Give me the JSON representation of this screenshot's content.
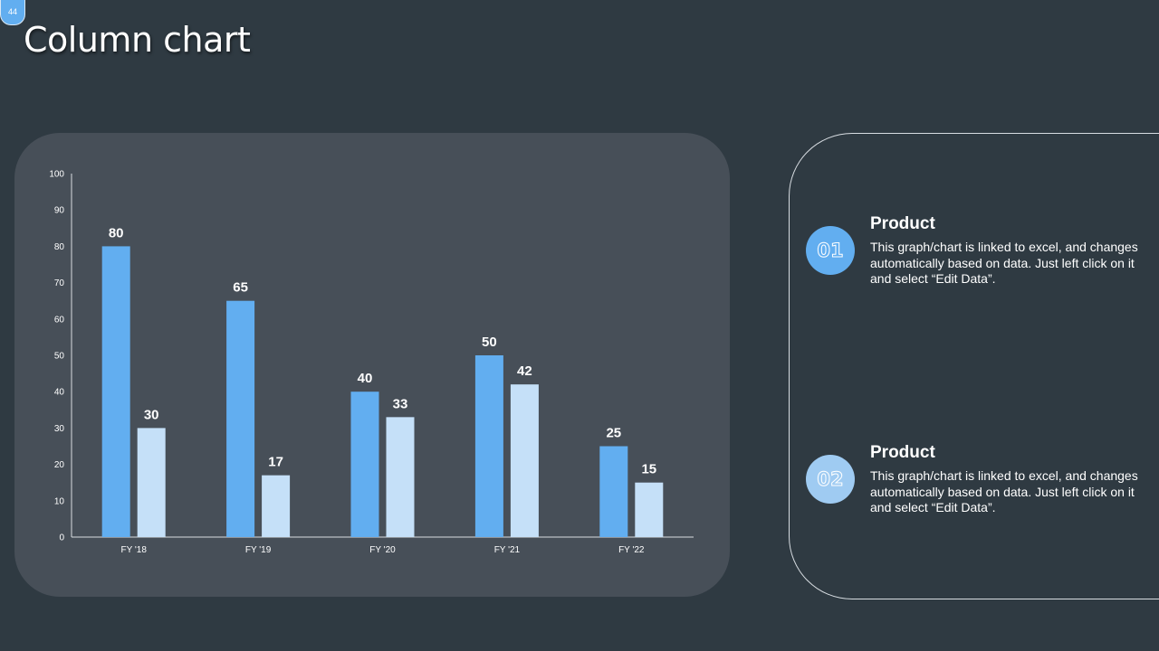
{
  "page": {
    "number": "44",
    "title": "Column chart"
  },
  "colors": {
    "background": "#2f3a42",
    "panel": "#474f58",
    "series_1": "#62aef0",
    "series_2": "#c5e0f8",
    "circle_1": "#62aef0",
    "circle_2": "#9fcbf2"
  },
  "legend_items": [
    {
      "number": "01",
      "heading": "Product",
      "text": "This graph/chart is linked to excel, and changes automatically based on data. Just left click on it and select “Edit Data”."
    },
    {
      "number": "02",
      "heading": "Product",
      "text": "This graph/chart is linked to excel, and changes automatically based on data. Just left click on it and select “Edit Data”."
    }
  ],
  "chart_data": {
    "type": "bar",
    "title": "",
    "xlabel": "",
    "ylabel": "",
    "categories": [
      "FY '18",
      "FY '19",
      "FY '20",
      "FY '21",
      "FY '22"
    ],
    "series": [
      {
        "values": [
          80,
          65,
          40,
          50,
          25
        ]
      },
      {
        "values": [
          30,
          17,
          33,
          42,
          15
        ]
      }
    ],
    "ylim": [
      0,
      100
    ],
    "yticks": [
      0,
      10,
      20,
      30,
      40,
      50,
      60,
      70,
      80,
      90,
      100
    ],
    "grid": false,
    "data_labels": true
  }
}
